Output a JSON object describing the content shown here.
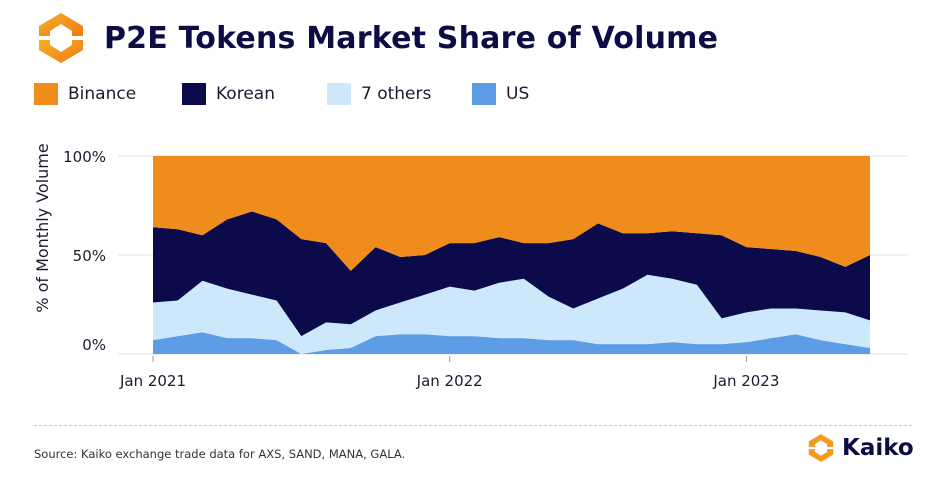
{
  "title": "P2E Tokens Market Share of Volume",
  "brand": {
    "name": "Kaiko"
  },
  "source": "Source: Kaiko exchange trade data for AXS, SAND, MANA, GALA.",
  "colors": {
    "binance": "#f08c1c",
    "korean": "#0b0a4a",
    "others": "#cde8fb",
    "us": "#5d9de6",
    "logo_orange": "#f39a1e",
    "title": "#0e0c45"
  },
  "legend": [
    {
      "label": "Binance",
      "color": "#f08c1c"
    },
    {
      "label": "Korean",
      "color": "#0b0a4a"
    },
    {
      "label": "7 others",
      "color": "#cde8fb"
    },
    {
      "label": "US",
      "color": "#5d9de6"
    }
  ],
  "chart_data": {
    "type": "area",
    "stacked": true,
    "title": "P2E Tokens Market Share of Volume",
    "ylabel": "% of Monthly Volume",
    "xlabel": "",
    "ylim": [
      0,
      100
    ],
    "yticks": [
      "0%",
      "50%",
      "100%"
    ],
    "ytick_values": [
      0,
      50,
      100
    ],
    "xticks": [
      "Jan 2021",
      "Jan 2022",
      "Jan 2023"
    ],
    "xtick_indices": [
      0,
      12,
      24
    ],
    "x": [
      "Jan 2021",
      "Feb 2021",
      "Mar 2021",
      "Apr 2021",
      "May 2021",
      "Jun 2021",
      "Jul 2021",
      "Aug 2021",
      "Sep 2021",
      "Oct 2021",
      "Nov 2021",
      "Dec 2021",
      "Jan 2022",
      "Feb 2022",
      "Mar 2022",
      "Apr 2022",
      "May 2022",
      "Jun 2022",
      "Jul 2022",
      "Aug 2022",
      "Sep 2022",
      "Oct 2022",
      "Nov 2022",
      "Dec 2022",
      "Jan 2023",
      "Feb 2023",
      "Mar 2023",
      "Apr 2023",
      "May 2023",
      "Jun 2023"
    ],
    "series": [
      {
        "name": "US",
        "values": [
          7,
          9,
          11,
          8,
          8,
          7,
          0,
          2,
          3,
          9,
          10,
          10,
          9,
          9,
          8,
          8,
          7,
          7,
          5,
          5,
          5,
          6,
          5,
          5,
          6,
          8,
          10,
          7,
          5,
          3
        ]
      },
      {
        "name": "7 others",
        "values": [
          19,
          18,
          26,
          25,
          22,
          20,
          9,
          14,
          12,
          13,
          16,
          20,
          25,
          23,
          28,
          30,
          22,
          16,
          23,
          28,
          35,
          32,
          30,
          13,
          15,
          15,
          13,
          15,
          16,
          14
        ]
      },
      {
        "name": "Korean",
        "values": [
          38,
          36,
          23,
          35,
          42,
          41,
          49,
          40,
          27,
          32,
          23,
          20,
          22,
          24,
          23,
          18,
          27,
          35,
          38,
          28,
          21,
          24,
          26,
          42,
          33,
          30,
          29,
          27,
          23,
          33
        ]
      },
      {
        "name": "Binance",
        "values": [
          36,
          37,
          40,
          32,
          28,
          32,
          42,
          44,
          58,
          46,
          51,
          50,
          44,
          44,
          41,
          44,
          44,
          42,
          34,
          39,
          39,
          38,
          39,
          40,
          46,
          47,
          48,
          51,
          56,
          50
        ]
      }
    ]
  }
}
